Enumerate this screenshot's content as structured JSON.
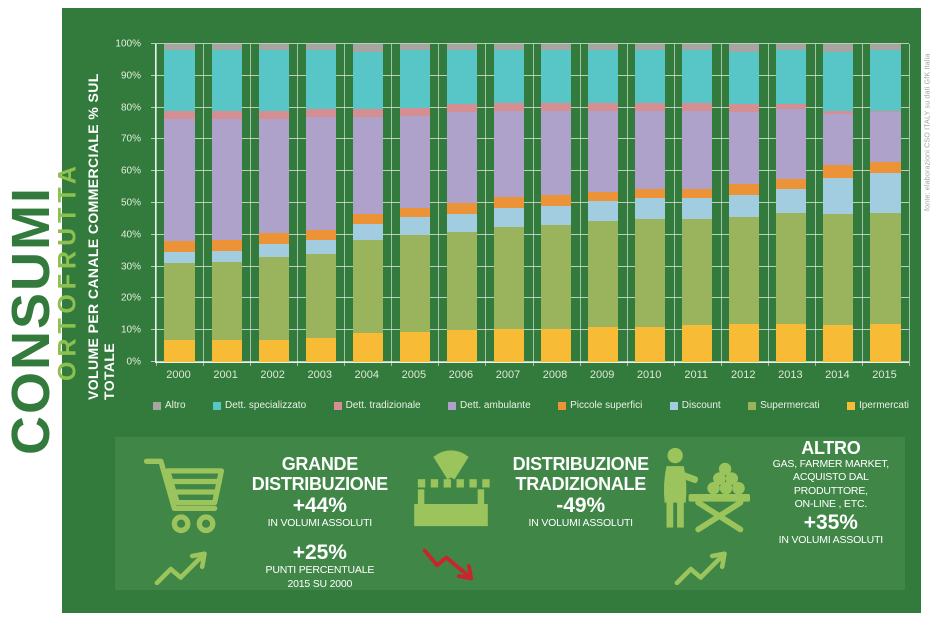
{
  "page": {
    "left_title": "CONSUMI",
    "left_subtitle": "ORTOFRUTTA",
    "source_note": "fonte: elaborazioni CSO ITALY su dati GfK Italia"
  },
  "colors": {
    "panel_green": "#337a3d",
    "panel_green_light": "#3f8647",
    "accent_green": "#9cc45c",
    "subtitle_green": "#8dc04e",
    "trend_red": "#c9252c"
  },
  "chart_data": {
    "type": "bar",
    "stacked": true,
    "title": "",
    "xlabel": "",
    "ylabel": "VOLUME PER CANALE COMMERCIALE % SUL TOTALE",
    "ylim": [
      0,
      100
    ],
    "grid": true,
    "legend_position": "bottom",
    "yticks": [
      "0%",
      "10%",
      "20%",
      "30%",
      "40%",
      "50%",
      "60%",
      "70%",
      "80%",
      "90%",
      "100%"
    ],
    "categories": [
      "2000",
      "2001",
      "2002",
      "2003",
      "2004",
      "2005",
      "2006",
      "2007",
      "2008",
      "2009",
      "2010",
      "2011",
      "2012",
      "2013",
      "2014",
      "2015"
    ],
    "series": [
      {
        "name": "Altro",
        "color": "#a7a5a0",
        "values": [
          2,
          2,
          2,
          2,
          2.5,
          2,
          2,
          2,
          2,
          2,
          2,
          2,
          2.5,
          2,
          2.5,
          2
        ]
      },
      {
        "name": "Dett. specializzato",
        "color": "#58c5c7",
        "values": [
          19,
          19,
          19,
          18.5,
          18,
          18,
          17,
          16.5,
          16.5,
          16.5,
          16.5,
          16.5,
          16.5,
          17,
          18.5,
          19
        ]
      },
      {
        "name": "Dett. tradizionale",
        "color": "#d58e92",
        "values": [
          2.5,
          2.5,
          2.5,
          2.5,
          2.5,
          2.5,
          2.5,
          2.5,
          2.5,
          2.5,
          2.5,
          2.5,
          2.5,
          1.5,
          1,
          0.5
        ]
      },
      {
        "name": "Dett. ambulante",
        "color": "#aea1ca",
        "values": [
          38.5,
          38,
          36,
          35.5,
          30.5,
          29,
          28.5,
          27,
          26.5,
          25.5,
          24.5,
          24.5,
          22.5,
          22,
          16,
          15.5
        ]
      },
      {
        "name": "Piccole superfici",
        "color": "#eb9336",
        "values": [
          3.5,
          3.5,
          3.5,
          3,
          3,
          3,
          3.5,
          3.5,
          3.5,
          3,
          3,
          3,
          3.5,
          3,
          4,
          3.5
        ]
      },
      {
        "name": "Discount",
        "color": "#a2cce0",
        "values": [
          3.5,
          3.5,
          4,
          4.5,
          5,
          5.5,
          5.5,
          6,
          6,
          6,
          6.5,
          6.5,
          7,
          7.5,
          11.5,
          12.5
        ]
      },
      {
        "name": "Supermercati",
        "color": "#99b45c",
        "values": [
          24,
          24.5,
          26,
          26.5,
          29.5,
          30.5,
          31,
          32,
          32.5,
          33.5,
          34,
          33.5,
          33.5,
          35,
          35,
          35
        ]
      },
      {
        "name": "Ipermercati",
        "color": "#f8bb36",
        "values": [
          7,
          7,
          7,
          7.5,
          9,
          9.5,
          10,
          10.5,
          10.5,
          11,
          11,
          11.5,
          12,
          12,
          11.5,
          12
        ]
      }
    ]
  },
  "infographics": {
    "grande": {
      "title1": "GRANDE",
      "title2": "DISTRIBUZIONE",
      "value": "+44%",
      "caption": "IN VOLUMI ASSOLUTI",
      "value2": "+25%",
      "caption2a": "PUNTI PERCENTUALE",
      "caption2b": "2015 SU 2000"
    },
    "tradizionale": {
      "title1": "DISTRIBUZIONE",
      "title2": "TRADIZIONALE",
      "value": "-49%",
      "caption": "IN VOLUMI ASSOLUTI"
    },
    "altro": {
      "title": "ALTRO",
      "sub1": "GAS, FARMER MARKET,",
      "sub2": "ACQUISTO DAL PRODUTTORE,",
      "sub3": "ON-LINE , ETC.",
      "value": "+35%",
      "caption": "IN VOLUMI ASSOLUTI"
    }
  }
}
